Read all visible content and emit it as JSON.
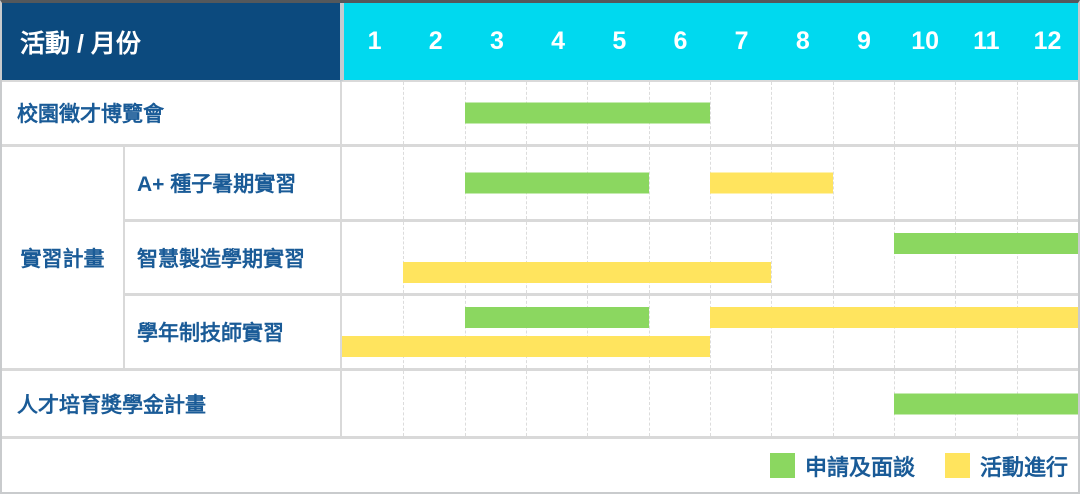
{
  "header": {
    "corner_label": "活動 / 月份"
  },
  "chart_data": {
    "type": "gantt",
    "title": "活動 / 月份",
    "months": [
      "1",
      "2",
      "3",
      "4",
      "5",
      "6",
      "7",
      "8",
      "9",
      "10",
      "11",
      "12"
    ],
    "x_range": [
      1,
      12
    ],
    "grid": "dashed-vertical-month-lines",
    "legend_position": "bottom-right",
    "rows": [
      {
        "group": "",
        "label": "校園徵才博覽會",
        "bars": [
          {
            "start_month": 3,
            "end_month": 6,
            "type": "apply",
            "lane": "mid"
          }
        ]
      },
      {
        "group": "實習計畫",
        "label": "A+ 種子暑期實習",
        "bars": [
          {
            "start_month": 3,
            "end_month": 5,
            "type": "apply",
            "lane": "mid"
          },
          {
            "start_month": 7,
            "end_month": 8,
            "type": "activity",
            "lane": "mid"
          }
        ]
      },
      {
        "group": "實習計畫",
        "label": "智慧製造學期實習",
        "bars": [
          {
            "start_month": 10,
            "end_month": 12,
            "type": "apply",
            "lane": "top"
          },
          {
            "start_month": 2,
            "end_month": 7,
            "type": "activity",
            "lane": "bottom"
          }
        ]
      },
      {
        "group": "實習計畫",
        "label": "學年制技師實習",
        "bars": [
          {
            "start_month": 3,
            "end_month": 5,
            "type": "apply",
            "lane": "top"
          },
          {
            "start_month": 7,
            "end_month": 12,
            "type": "activity",
            "lane": "top"
          },
          {
            "start_month": 1,
            "end_month": 6,
            "type": "activity",
            "lane": "bottom"
          }
        ]
      },
      {
        "group": "",
        "label": "人才培育獎學金計畫",
        "bars": [
          {
            "start_month": 10,
            "end_month": 12,
            "type": "apply",
            "lane": "mid"
          }
        ]
      }
    ],
    "legend": [
      {
        "type": "apply",
        "label": "申請及面談"
      },
      {
        "type": "activity",
        "label": "活動進行"
      }
    ],
    "colors": {
      "apply": "#8BD760",
      "activity": "#FFE45E",
      "month_header_bg": "#00D9EF",
      "corner_bg": "#0C4A7E",
      "label_text": "#1A5B97",
      "grid_line": "#D9D9D9"
    }
  }
}
